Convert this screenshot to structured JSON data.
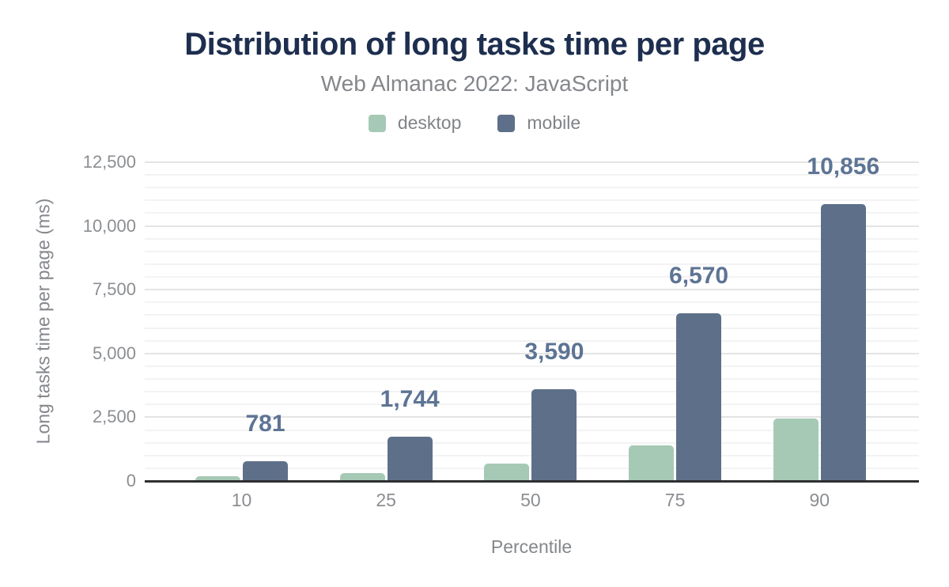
{
  "figure": {
    "title": "Distribution of long tasks time per page",
    "subtitle": "Web Almanac 2022: JavaScript"
  },
  "colors": {
    "title": "#1d2e4e",
    "subtitle_and_axis_text": "#84878b",
    "tick_text": "#8b8e92",
    "desktop_bar": "#a6c9b5",
    "mobile_bar": "#5e7089",
    "value_label": "#5d7494",
    "axis_line": "#2e2f31",
    "gridline_major": "#e4e4e4",
    "gridline_minor": "#f3f3f3",
    "background": "#ffffff"
  },
  "chart_data": {
    "type": "bar",
    "title": "Distribution of long tasks time per page",
    "subtitle": "Web Almanac 2022: JavaScript",
    "categories": [
      "10",
      "25",
      "50",
      "75",
      "90"
    ],
    "xlabel": "Percentile",
    "ylabel": "Long tasks time per page (ms)",
    "ylim": [
      0,
      12500
    ],
    "grid": true,
    "minor_grid_step": 500,
    "legend_position": "top",
    "yticks": [
      {
        "value": 0,
        "label": "0"
      },
      {
        "value": 2500,
        "label": "2,500"
      },
      {
        "value": 5000,
        "label": "5,000"
      },
      {
        "value": 7500,
        "label": "7,500"
      },
      {
        "value": 10000,
        "label": "10,000"
      },
      {
        "value": 12500,
        "label": "12,500"
      }
    ],
    "series": [
      {
        "name": "desktop",
        "color": "#a6c9b5",
        "values": [
          175,
          310,
          680,
          1400,
          2450
        ],
        "show_value_labels": false,
        "value_labels": []
      },
      {
        "name": "mobile",
        "color": "#5e7089",
        "values": [
          781,
          1744,
          3590,
          6570,
          10856
        ],
        "show_value_labels": true,
        "value_labels": [
          "781",
          "1,744",
          "3,590",
          "6,570",
          "10,856"
        ]
      }
    ]
  }
}
